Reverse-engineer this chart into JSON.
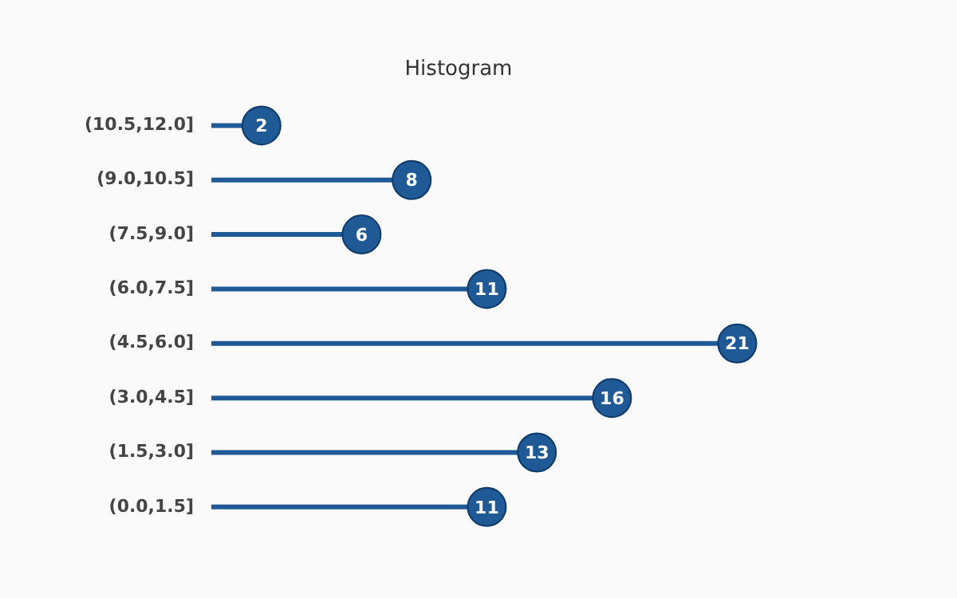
{
  "chart_data": {
    "type": "lollipop",
    "title": "Histogram",
    "orientation": "horizontal",
    "categories": [
      "(10.5,12.0]",
      "(9.0,10.5]",
      "(7.5,9.0]",
      "(6.0,7.5]",
      "(4.5,6.0]",
      "(3.0,4.5]",
      "(1.5,3.0]",
      "(0.0,1.5]"
    ],
    "values": [
      2,
      8,
      6,
      11,
      21,
      16,
      13,
      11
    ],
    "color": "#1f5a96",
    "data_labels": true,
    "legend": false
  }
}
